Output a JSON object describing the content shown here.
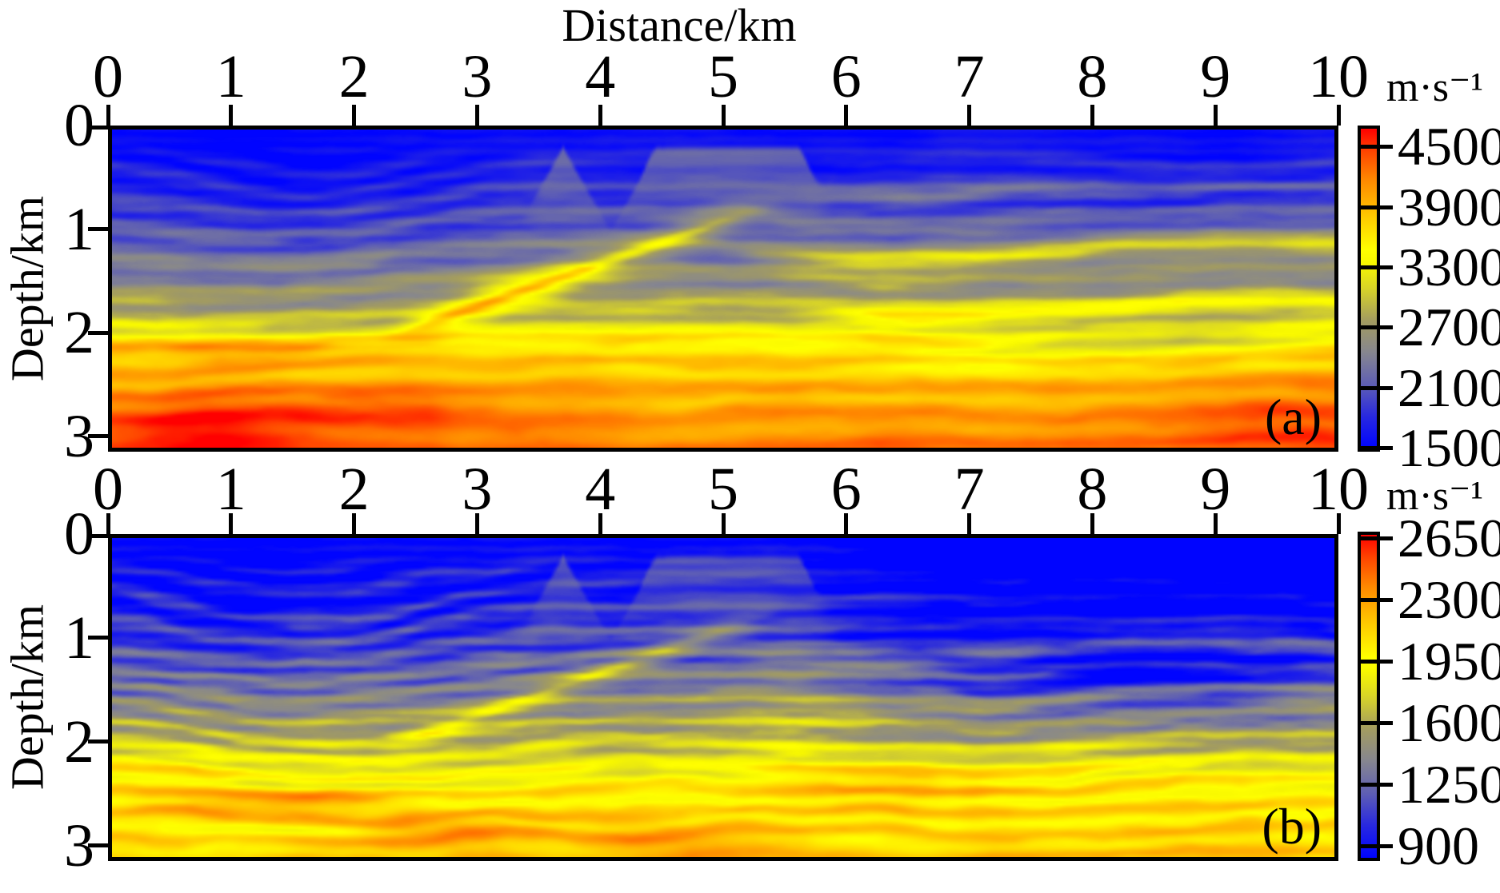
{
  "figure": {
    "x_title": "Distance/km",
    "y_title": "Depth/km",
    "unit": "m·s⁻¹"
  },
  "chart_data": {
    "type": "heatmap",
    "title": "Distance/km",
    "xlabel": "Distance/km",
    "ylabel": "Depth/km",
    "x_axis": {
      "range_km": [
        0,
        10
      ],
      "ticks": [
        0,
        1,
        2,
        3,
        4,
        5,
        6,
        7,
        8,
        9,
        10
      ]
    },
    "y_axis": {
      "range_km": [
        0,
        3.15
      ],
      "ticks": [
        0,
        1,
        2,
        3
      ],
      "direction": "down"
    },
    "grid": false,
    "description": "Two Marmousi-style seismic P-wave velocity sections from full-waveform inversion. Velocity increases with depth from blue (slow) through gray/olive and yellow to orange/red (fast). Features: blue shallow zone; syncline bowl of dipping layers on the left near x=1.4 km; a bright dipping yellow band rising from (2.4 km, 2.0 km) to (5 km, 0.9 km); faulted gray wedges near the surface between x=3.3-6 km; undulating yellow/gray horizontal bands on the right; red high-velocity patches at the bottom left.",
    "colormap": [
      [
        0.0,
        "#0004ff"
      ],
      [
        0.1,
        "#2828e0"
      ],
      [
        0.2,
        "#5f5fb4"
      ],
      [
        0.3,
        "#86868f"
      ],
      [
        0.4,
        "#a39c60"
      ],
      [
        0.5,
        "#d8d428"
      ],
      [
        0.58,
        "#f8f800"
      ],
      [
        0.62,
        "#ffff00"
      ],
      [
        0.72,
        "#ffcc00"
      ],
      [
        0.84,
        "#ff8800"
      ],
      [
        0.93,
        "#ff4400"
      ],
      [
        1.0,
        "#ff0000"
      ]
    ],
    "panels": [
      {
        "label": "(a)",
        "colorbar": {
          "unit": "m·s⁻¹",
          "vmin": 1500,
          "vmax": 4500,
          "ticks": [
            4500,
            3900,
            3300,
            2700,
            2100,
            1500
          ]
        },
        "field": {
          "seed": 11,
          "base": [
            [
              0,
              0.02
            ],
            [
              0.5,
              0.1
            ],
            [
              1.0,
              0.22
            ],
            [
              1.5,
              0.34
            ],
            [
              1.85,
              0.46
            ],
            [
              2.1,
              0.66
            ],
            [
              2.55,
              0.76
            ],
            [
              3.15,
              0.86
            ]
          ],
          "bowl": {
            "cx": 1.4,
            "w": 1.15,
            "amp": 0.38
          },
          "streak": {
            "freq": 3.6,
            "amp": 0.075,
            "warp": 1.6
          },
          "tex": 0.018,
          "noise": 0.055,
          "ramp": {
            "x0": 2.4,
            "x1": 5.1,
            "z0": 2.0,
            "slope": 0.42,
            "sigma": 0.16,
            "amp": 0.2,
            "core": 0.12
          },
          "bands": [
            {
              "x0": 5.4,
              "z": 1.22,
              "wav": 0.1,
              "sigma": 0.14,
              "amp": 0.22
            },
            {
              "x0": 5.6,
              "z": 1.78,
              "wav": 0.07,
              "sigma": 0.1,
              "amp": 0.15
            },
            {
              "x0": 5.0,
              "z": 0.6,
              "wav": 0.08,
              "sigma": 0.09,
              "amp": 0.07
            }
          ],
          "wedge": {
            "x0": 3.3,
            "x1": 5.95,
            "period": 0.78,
            "zt0": 0.12,
            "zt1": 0.95,
            "zb": 1.15,
            "t": 0.3
          },
          "lenses": [
            {
              "x": 8.4,
              "z": 2.1,
              "sx": 1.3,
              "sz": 0.14,
              "amp": -0.15
            },
            {
              "x": 7.0,
              "z": 2.32,
              "sx": 0.8,
              "sz": 0.1,
              "amp": -0.08
            }
          ],
          "blobs": [
            {
              "x": 0.7,
              "z": 2.95,
              "sx": 1.0,
              "sz": 0.3,
              "amp": 0.18
            },
            {
              "x": 2.1,
              "z": 2.75,
              "sx": 0.9,
              "sz": 0.22,
              "amp": 0.12
            },
            {
              "x": 1.2,
              "z": 2.18,
              "sx": 1.3,
              "sz": 0.16,
              "amp": 0.13
            },
            {
              "x": 3.3,
              "z": 1.55,
              "sx": 0.45,
              "sz": 0.12,
              "amp": 0.14
            },
            {
              "x": 9.7,
              "z": 2.9,
              "sx": 0.9,
              "sz": 0.4,
              "amp": 0.08
            }
          ],
          "coolRight": 0
        }
      },
      {
        "label": "(b)",
        "colorbar": {
          "unit": "m·s⁻¹",
          "vmin": 900,
          "vmax": 2650,
          "ticks": [
            2650,
            2300,
            1950,
            1600,
            1250,
            900
          ]
        },
        "field": {
          "seed": 23,
          "base": [
            [
              0,
              0.0
            ],
            [
              0.5,
              0.05
            ],
            [
              1.0,
              0.16
            ],
            [
              1.5,
              0.3
            ],
            [
              2.0,
              0.47
            ],
            [
              2.35,
              0.61
            ],
            [
              2.75,
              0.68
            ],
            [
              3.15,
              0.73
            ]
          ],
          "bowl": {
            "cx": 1.4,
            "w": 1.2,
            "amp": 0.35
          },
          "streak": {
            "freq": 4.4,
            "amp": 0.1,
            "warp": 2.0
          },
          "tex": 0.032,
          "noise": 0.07,
          "ramp": {
            "x0": 2.4,
            "x1": 5.1,
            "z0": 2.0,
            "slope": 0.42,
            "sigma": 0.13,
            "amp": 0.17,
            "core": 0.05
          },
          "bands": [
            {
              "x0": 5.2,
              "z": 1.08,
              "wav": 0.12,
              "sigma": 0.12,
              "amp": 0.13
            },
            {
              "x0": 5.4,
              "z": 1.62,
              "wav": 0.1,
              "sigma": 0.11,
              "amp": 0.12
            },
            {
              "x0": 4.8,
              "z": 0.55,
              "wav": 0.1,
              "sigma": 0.09,
              "amp": 0.06
            }
          ],
          "wedge": {
            "x0": 3.3,
            "x1": 5.95,
            "period": 0.78,
            "zt0": 0.12,
            "zt1": 0.95,
            "zb": 1.15,
            "t": 0.26
          },
          "lenses": [
            {
              "x": 8.5,
              "z": 1.35,
              "sx": 1.2,
              "sz": 0.3,
              "amp": -0.1
            },
            {
              "x": 1.6,
              "z": 2.42,
              "sx": 0.7,
              "sz": 0.07,
              "amp": -0.12
            },
            {
              "x": 1.5,
              "z": 2.9,
              "sx": 0.8,
              "sz": 0.06,
              "amp": -0.1
            }
          ],
          "blobs": [
            {
              "x": 1.2,
              "z": 2.6,
              "sx": 1.1,
              "sz": 0.18,
              "amp": 0.16
            },
            {
              "x": 2.7,
              "z": 2.9,
              "sx": 0.9,
              "sz": 0.18,
              "amp": 0.13
            },
            {
              "x": 0.5,
              "z": 2.25,
              "sx": 0.6,
              "sz": 0.2,
              "amp": 0.1
            },
            {
              "x": 6.3,
              "z": 2.4,
              "sx": 1.0,
              "sz": 0.22,
              "amp": 0.1
            },
            {
              "x": 4.5,
              "z": 3.0,
              "sx": 0.8,
              "sz": 0.2,
              "amp": 0.1
            }
          ],
          "coolRight": 0.12
        }
      }
    ]
  }
}
